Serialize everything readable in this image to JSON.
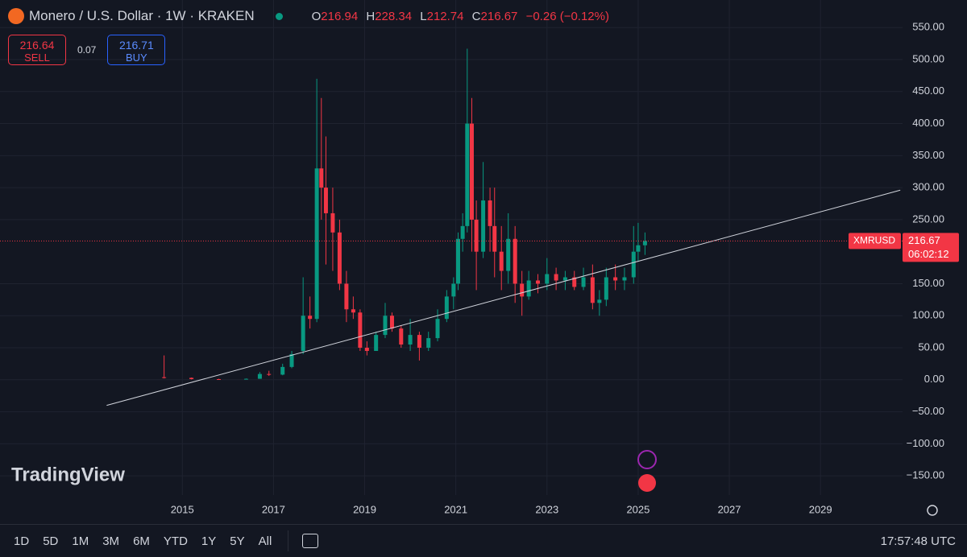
{
  "header": {
    "title": "Monero / U.S. Dollar · 1W · KRAKEN",
    "ohlc": [
      {
        "label": "O",
        "value": "216.94"
      },
      {
        "label": "H",
        "value": "228.34"
      },
      {
        "label": "L",
        "value": "212.74"
      },
      {
        "label": "C",
        "value": "216.67"
      }
    ],
    "change": "−0.26 (−0.12%)"
  },
  "trade": {
    "sell_price": "216.64",
    "sell_label": "SELL",
    "spread": "0.07",
    "buy_price": "216.71",
    "buy_label": "BUY"
  },
  "chart_data": {
    "type": "candlestick",
    "x": [
      2014.6,
      2015.2,
      2015.8,
      2016.4,
      2016.7,
      2016.9,
      2017.2,
      2017.4,
      2017.65,
      2017.8,
      2017.95,
      2018.05,
      2018.15,
      2018.3,
      2018.45,
      2018.6,
      2018.75,
      2018.9,
      2019.05,
      2019.25,
      2019.45,
      2019.6,
      2019.8,
      2020.0,
      2020.2,
      2020.4,
      2020.6,
      2020.8,
      2020.95,
      2021.05,
      2021.15,
      2021.25,
      2021.35,
      2021.45,
      2021.6,
      2021.75,
      2021.85,
      2022.0,
      2022.15,
      2022.3,
      2022.45,
      2022.6,
      2022.8,
      2023.0,
      2023.2,
      2023.4,
      2023.6,
      2023.8,
      2024.0,
      2024.15,
      2024.3,
      2024.5,
      2024.7,
      2024.9,
      2025.0,
      2025.15
    ],
    "open": [
      4,
      3,
      1,
      0.6,
      1.5,
      9,
      8,
      20,
      45,
      100,
      95,
      330,
      300,
      260,
      230,
      150,
      110,
      105,
      50,
      45,
      70,
      100,
      80,
      55,
      70,
      50,
      65,
      95,
      130,
      150,
      220,
      240,
      400,
      250,
      200,
      280,
      240,
      200,
      170,
      220,
      150,
      130,
      155,
      150,
      165,
      155,
      160,
      145,
      160,
      120,
      125,
      160,
      155,
      160,
      200,
      210
    ],
    "high": [
      38,
      3.5,
      1.5,
      2,
      12,
      14,
      25,
      45,
      160,
      130,
      470,
      440,
      380,
      300,
      250,
      170,
      130,
      110,
      60,
      75,
      120,
      105,
      85,
      95,
      75,
      75,
      110,
      140,
      160,
      230,
      260,
      517,
      440,
      280,
      340,
      300,
      300,
      240,
      260,
      240,
      170,
      170,
      165,
      190,
      175,
      170,
      170,
      175,
      180,
      140,
      175,
      180,
      175,
      240,
      245,
      230
    ],
    "low": [
      2,
      0.5,
      0.3,
      0.5,
      1.5,
      6,
      7,
      18,
      40,
      80,
      90,
      250,
      180,
      170,
      140,
      90,
      95,
      45,
      38,
      45,
      65,
      75,
      50,
      45,
      30,
      45,
      60,
      90,
      110,
      140,
      200,
      230,
      200,
      140,
      190,
      200,
      160,
      140,
      150,
      120,
      100,
      125,
      135,
      140,
      140,
      140,
      140,
      140,
      110,
      100,
      115,
      140,
      140,
      150,
      185,
      195
    ],
    "close": [
      3,
      1,
      0.6,
      1.5,
      9,
      8,
      20,
      40,
      100,
      95,
      330,
      300,
      260,
      230,
      150,
      110,
      105,
      50,
      45,
      70,
      100,
      80,
      55,
      70,
      50,
      65,
      95,
      130,
      150,
      220,
      240,
      400,
      250,
      200,
      280,
      240,
      200,
      170,
      220,
      150,
      130,
      155,
      150,
      165,
      155,
      160,
      145,
      160,
      120,
      125,
      160,
      155,
      160,
      200,
      210,
      216.67
    ],
    "up_color": "#089981",
    "down_color": "#f23645",
    "xlim": [
      2011,
      2030.8
    ],
    "xticks": [
      2015,
      2017,
      2019,
      2021,
      2023,
      2025,
      2027,
      2029
    ],
    "ylim": [
      -180,
      593
    ],
    "yticks": [
      {
        "value": 550,
        "label": "550.00"
      },
      {
        "value": 500,
        "label": "500.00"
      },
      {
        "value": 450,
        "label": "450.00"
      },
      {
        "value": 400,
        "label": "400.00"
      },
      {
        "value": 350,
        "label": "350.00"
      },
      {
        "value": 300,
        "label": "300.00"
      },
      {
        "value": 250,
        "label": "250.00"
      },
      {
        "value": 150,
        "label": "150.00"
      },
      {
        "value": 100,
        "label": "100.00"
      },
      {
        "value": 50,
        "label": "50.00"
      },
      {
        "value": 0,
        "label": "0.00"
      },
      {
        "value": -50,
        "label": "−50.00"
      },
      {
        "value": -100,
        "label": "−100.00"
      },
      {
        "value": -150,
        "label": "−150.00"
      }
    ],
    "grid": true,
    "trendline": {
      "x": [
        2013.34,
        2030.75
      ],
      "values": [
        -40,
        296
      ],
      "color": "#d1d4dc"
    },
    "last_price": {
      "symbol": "XMRUSD",
      "value": 216.67,
      "countdown": "06:02:12"
    }
  },
  "logo": "TradingView",
  "toolbar": {
    "ranges": [
      "1D",
      "5D",
      "1M",
      "3M",
      "6M",
      "YTD",
      "1Y",
      "5Y",
      "All"
    ],
    "clock": "17:57:48 UTC"
  }
}
